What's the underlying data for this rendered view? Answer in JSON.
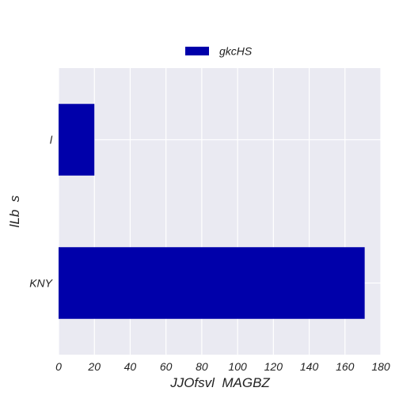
{
  "chart_data": {
    "type": "bar",
    "orientation": "horizontal",
    "categories": [
      "l",
      "KNY"
    ],
    "series": [
      {
        "name": "gkcHS",
        "values": [
          20,
          171
        ],
        "color": "#0000aa"
      }
    ],
    "xlabel": "JJOfsvl  MAGBZ",
    "ylabel": "lLb  s",
    "xlim": [
      0,
      180
    ],
    "xticks": [
      "0",
      "20",
      "40",
      "60",
      "80",
      "100",
      "120",
      "140",
      "160",
      "180"
    ],
    "grid": true,
    "legend_position": "top-center",
    "background_color": "#eaeaf2"
  }
}
